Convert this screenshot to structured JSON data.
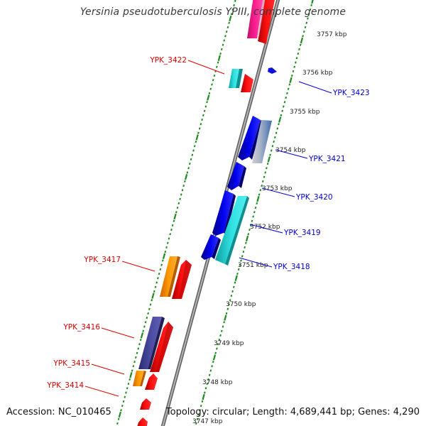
{
  "title": "Yersinia pseudotuberculosis YPIII, complete genome",
  "footer": {
    "accession": "Accession: NC_010465",
    "summary": "Topology: circular; Length: 4,689,441 bp; Genes: 4,290"
  },
  "colors": {
    "forward_label": "#dd0000",
    "reverse_label": "#0000cc",
    "backbone": "#8a8a8a",
    "ticks": "#1f8a1f"
  },
  "kbp_ticks": [
    "3757 kbp",
    "3756 kbp",
    "3755 kbp",
    "3754 kbp",
    "3753 kbp",
    "3752 kbp",
    "3751 kbp",
    "3750 kbp",
    "3749 kbp",
    "3748 kbp",
    "3747 kbp"
  ],
  "genes_forward": [
    {
      "label": "",
      "color": "#ff2090",
      "arrow_color": "#ee0000"
    },
    {
      "label": "YPK_3422",
      "color": "#25d0d0",
      "arrow_color": "#ee0000"
    },
    {
      "label": "YPK_3417",
      "color": "#ff9900",
      "arrow_color": "#ee0000"
    },
    {
      "label": "YPK_3416",
      "color": "#46469a",
      "arrow_color": "#ee0000"
    },
    {
      "label": "YPK_3415",
      "color": "#ff9900",
      "arrow_color": "#ee0000"
    },
    {
      "label": "YPK_3414",
      "color": "",
      "arrow_color": "#ee0000"
    }
  ],
  "genes_reverse": [
    {
      "label": "YPK_3423",
      "color": "#0000ee"
    },
    {
      "label": "YPK_3421",
      "color": "#0000ee"
    },
    {
      "label": "YPK_3420",
      "color": "#0000ee"
    },
    {
      "label": "YPK_3419",
      "color": "#0000ee"
    },
    {
      "label": "YPK_3418",
      "color": "#25d0d0"
    }
  ]
}
